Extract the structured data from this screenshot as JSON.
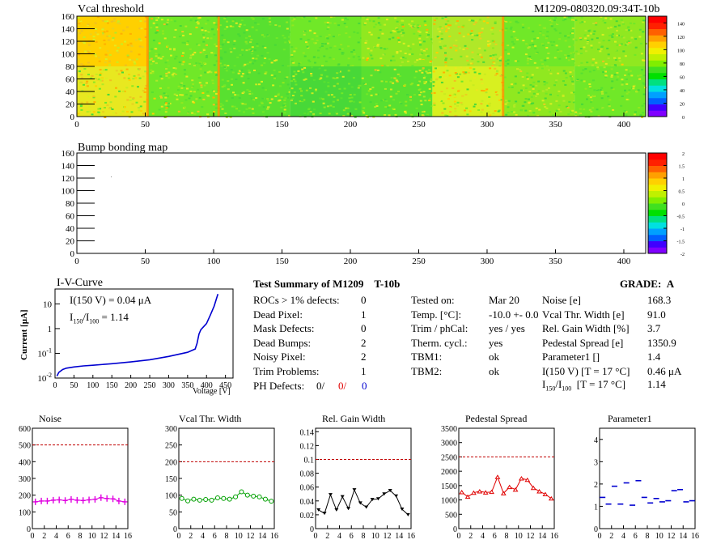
{
  "vcal_map": {
    "title": "Vcal threshold",
    "module_label": "M1209-080320.09:34T-10b",
    "x_ticks": [
      "0",
      "50",
      "100",
      "150",
      "200",
      "250",
      "300",
      "350",
      "400"
    ],
    "y_ticks": [
      "0",
      "20",
      "40",
      "60",
      "80",
      "100",
      "120",
      "140",
      "160"
    ],
    "palette_ticks": [
      "0",
      "20",
      "40",
      "60",
      "80",
      "100",
      "120",
      "140"
    ],
    "colors": {
      "warm": "#ffc800",
      "green": "#38e028",
      "yellow": "#d8f020"
    }
  },
  "bump_map": {
    "title": "Bump bonding map",
    "x_ticks": [
      "0",
      "50",
      "100",
      "150",
      "200",
      "250",
      "300",
      "350",
      "400"
    ],
    "y_ticks": [
      "0",
      "20",
      "40",
      "60",
      "80",
      "100",
      "120",
      "140",
      "160"
    ],
    "palette_ticks": [
      "-2",
      "-1.5",
      "-1",
      "-0.5",
      "0",
      "0.5",
      "1",
      "1.5",
      "2"
    ]
  },
  "iv_curve": {
    "title": "I-V-Curve",
    "ylabel": "Current [μA]",
    "xlabel": "Voltage [V]",
    "annotation1": "I(150 V) = 0.04 μA",
    "annotation2_main": "I",
    "annotation2_sub1": "150",
    "annotation2_mid": "/I",
    "annotation2_sub2": "100",
    "annotation2_val": "=  1.14",
    "x_ticks": [
      "0",
      "50",
      "100",
      "150",
      "200",
      "250",
      "300",
      "350",
      "400",
      "450"
    ],
    "y_ticks": [
      {
        "base": "10",
        "exp": "-2"
      },
      {
        "base": "10",
        "exp": "-1"
      },
      {
        "base": "1",
        "exp": ""
      },
      {
        "base": "10",
        "exp": ""
      }
    ]
  },
  "summary": {
    "title": "Test Summary of M1209",
    "tag": "T-10b",
    "grade_label": "GRADE:",
    "grade_value": "A",
    "defects": [
      {
        "label": "ROCs > 1% defects:",
        "value": "0"
      },
      {
        "label": "Dead Pixel:",
        "value": "1"
      },
      {
        "label": "Mask Defects:",
        "value": "0"
      },
      {
        "label": "Dead Bumps:",
        "value": "2"
      },
      {
        "label": "Noisy Pixel:",
        "value": "2"
      },
      {
        "label": "Trim Problems:",
        "value": "1"
      }
    ],
    "ph_label": "PH Defects:",
    "ph_values": [
      "0/",
      "0/",
      "0"
    ],
    "ph_colors": [
      "#000000",
      "#e00000",
      "#0000d0"
    ],
    "conditions": [
      {
        "label": "Tested on:",
        "value": "Mar 20"
      },
      {
        "label": "Temp. [°C]:",
        "value": "-10.0 +- 0.0"
      },
      {
        "label": "Trim / phCal:",
        "value": "yes / yes"
      },
      {
        "label": "Therm. cycl.:",
        "value": "yes"
      },
      {
        "label": "TBM1:",
        "value": "ok"
      },
      {
        "label": "TBM2:",
        "value": "ok"
      }
    ],
    "params": [
      {
        "label": "Noise [e]",
        "value": "168.3"
      },
      {
        "label": "Vcal Thr. Width [e]",
        "value": "91.0"
      },
      {
        "label": "Rel. Gain Width [%]",
        "value": "3.7"
      },
      {
        "label": "Pedestal Spread [e]",
        "value": "1350.9"
      },
      {
        "label": "Parameter1 []",
        "value": "1.4"
      },
      {
        "label": "I(150 V) [T = 17 °C]",
        "value": "0.46 μA"
      }
    ],
    "ratio_row": {
      "i": "I",
      "sub1": "150",
      "mid": "/I",
      "sub2": "100",
      "cond": "[T = 17 °C]",
      "value": "1.14"
    }
  },
  "chart_data": [
    {
      "type": "heatmap",
      "title": "Vcal threshold",
      "xlim": [
        0,
        416
      ],
      "ylim": [
        0,
        160
      ],
      "zlim": [
        0,
        150
      ],
      "rocs_per_row": 8,
      "roc_mean_values": {
        "top": [
          108,
          88,
          82,
          78,
          90,
          98,
          85,
          88
        ],
        "bottom": [
          98,
          90,
          85,
          80,
          88,
          97,
          87,
          85
        ]
      }
    },
    {
      "type": "heatmap",
      "title": "Bump bonding map",
      "xlim": [
        0,
        416
      ],
      "ylim": [
        0,
        160
      ],
      "zlim": [
        -2,
        2
      ]
    },
    {
      "type": "line",
      "title": "I-V-Curve",
      "xlabel": "Voltage [V]",
      "ylabel": "Current [μA]",
      "xlim": [
        0,
        470
      ],
      "ylim": [
        0.01,
        40
      ],
      "yscale": "log",
      "x": [
        5,
        10,
        20,
        30,
        50,
        75,
        100,
        150,
        200,
        250,
        300,
        350,
        370,
        375,
        380,
        385,
        390,
        400,
        410,
        420,
        430
      ],
      "y": [
        0.012,
        0.017,
        0.022,
        0.025,
        0.028,
        0.031,
        0.033,
        0.038,
        0.045,
        0.055,
        0.075,
        0.11,
        0.15,
        0.25,
        0.6,
        0.9,
        1.1,
        1.6,
        3.5,
        8.0,
        25.0
      ]
    },
    {
      "type": "line",
      "title": "Noise",
      "xlim": [
        0,
        16
      ],
      "ylim": [
        0,
        600
      ],
      "threshold": 500,
      "x": [
        0,
        1,
        2,
        3,
        4,
        5,
        6,
        7,
        8,
        9,
        10,
        11,
        12,
        13,
        14,
        15
      ],
      "y": [
        160,
        165,
        165,
        170,
        172,
        168,
        175,
        170,
        168,
        172,
        175,
        185,
        180,
        178,
        165,
        160
      ]
    },
    {
      "type": "line",
      "title": "Vcal Thr. Width",
      "xlim": [
        0,
        16
      ],
      "ylim": [
        0,
        300
      ],
      "threshold": 200,
      "x": [
        0,
        1,
        2,
        3,
        4,
        5,
        6,
        7,
        8,
        9,
        10,
        11,
        12,
        13,
        14,
        15
      ],
      "y": [
        90,
        83,
        88,
        85,
        87,
        85,
        92,
        90,
        88,
        95,
        110,
        100,
        97,
        95,
        88,
        82
      ]
    },
    {
      "type": "line",
      "title": "Rel. Gain Width",
      "xlim": [
        0,
        16
      ],
      "ylim": [
        0,
        0.145
      ],
      "threshold": 0.1,
      "x": [
        0,
        1,
        2,
        3,
        4,
        5,
        6,
        7,
        8,
        9,
        10,
        11,
        12,
        13,
        14,
        15
      ],
      "y": [
        0.027,
        0.022,
        0.049,
        0.027,
        0.046,
        0.029,
        0.056,
        0.037,
        0.031,
        0.042,
        0.043,
        0.05,
        0.055,
        0.047,
        0.028,
        0.02
      ]
    },
    {
      "type": "line",
      "title": "Pedestal Spread",
      "xlim": [
        0,
        16
      ],
      "ylim": [
        0,
        3500
      ],
      "threshold": 2500,
      "x": [
        0,
        1,
        2,
        3,
        4,
        5,
        6,
        7,
        8,
        9,
        10,
        11,
        12,
        13,
        14,
        15
      ],
      "y": [
        1270,
        1110,
        1250,
        1300,
        1260,
        1280,
        1800,
        1230,
        1450,
        1360,
        1750,
        1700,
        1420,
        1300,
        1200,
        1050
      ]
    },
    {
      "type": "scatter",
      "title": "Parameter1",
      "xlim": [
        0,
        16
      ],
      "ylim": [
        0,
        4.5
      ],
      "x": [
        0,
        1,
        2,
        3,
        4,
        5,
        6,
        7,
        8,
        9,
        10,
        11,
        12,
        13,
        14,
        15
      ],
      "y": [
        1.4,
        1.1,
        1.9,
        1.1,
        2.05,
        1.05,
        2.15,
        1.4,
        1.15,
        1.35,
        1.2,
        1.25,
        1.7,
        1.75,
        1.2,
        1.25
      ]
    }
  ]
}
